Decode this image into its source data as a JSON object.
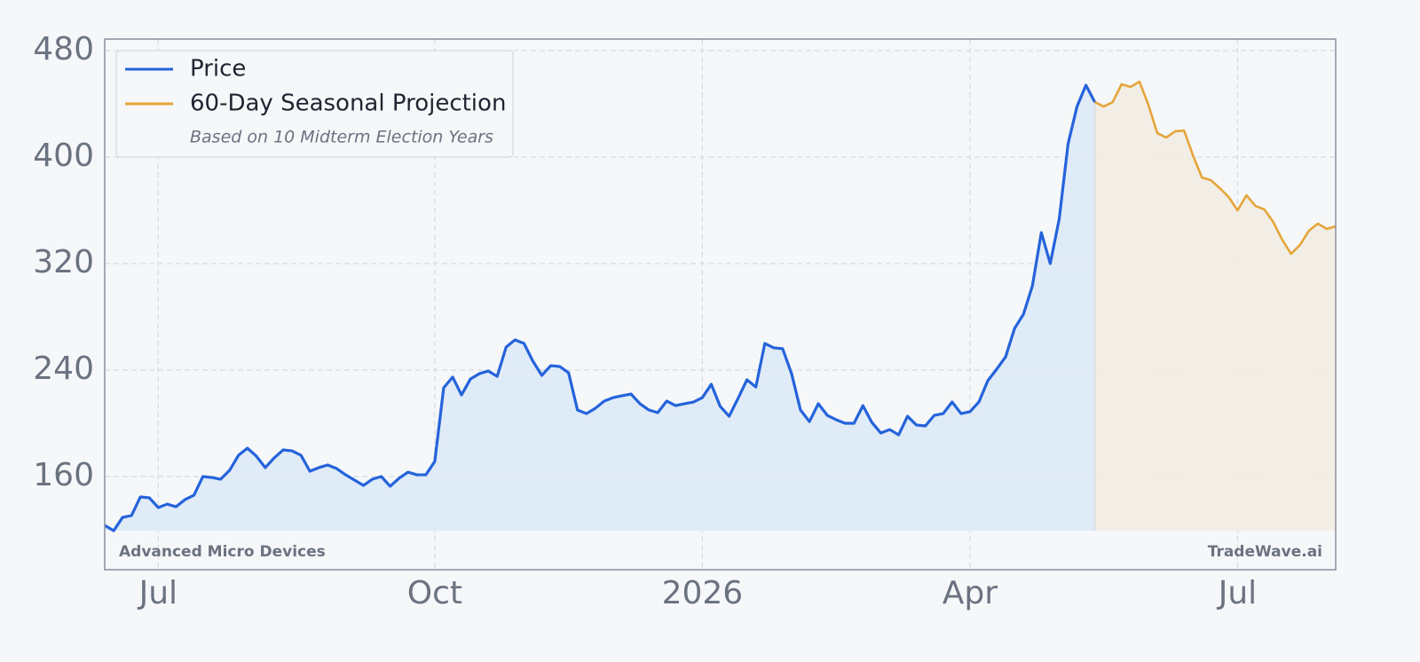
{
  "chart_data": {
    "type": "line",
    "company_note": "Advanced Micro Devices",
    "source_note": "TradeWave.ai",
    "legend_note": "Based on 10 Midterm Election Years",
    "legend_position": "upper left",
    "grid": true,
    "ylim": [
      90,
      488.7
    ],
    "yticks": [
      160,
      240,
      320,
      400,
      480
    ],
    "categories": [
      null,
      null,
      null,
      null,
      null,
      null,
      "Jul",
      null,
      null,
      null,
      null,
      null,
      null,
      null,
      null,
      null,
      null,
      null,
      null,
      null,
      null,
      null,
      null,
      null,
      null,
      null,
      null,
      null,
      null,
      null,
      null,
      null,
      null,
      null,
      null,
      null,
      null,
      "Oct",
      null,
      null,
      null,
      null,
      null,
      null,
      null,
      null,
      null,
      null,
      null,
      null,
      null,
      null,
      null,
      null,
      null,
      null,
      null,
      null,
      null,
      null,
      null,
      null,
      null,
      null,
      null,
      null,
      null,
      "2026",
      null,
      null,
      null,
      null,
      null,
      null,
      null,
      null,
      null,
      null,
      null,
      null,
      null,
      null,
      null,
      null,
      null,
      null,
      null,
      null,
      null,
      null,
      null,
      null,
      null,
      null,
      null,
      null,
      null,
      "Apr",
      null,
      null,
      null,
      null,
      null,
      null,
      null,
      null,
      null,
      null,
      null,
      null,
      null,
      null,
      null,
      null,
      null,
      null,
      null,
      null,
      null,
      null,
      null,
      null,
      null,
      null,
      null,
      null,
      null,
      "Jul",
      null,
      null,
      null,
      null,
      null,
      null,
      null,
      null,
      null,
      null,
      null
    ],
    "series": [
      {
        "name": "Price",
        "color": "#2563db",
        "fill": "#dde9f6",
        "values": [
          123.3,
          119.3,
          129.3,
          130.7,
          144.7,
          144,
          136.7,
          139.3,
          137.3,
          142.7,
          146,
          160,
          159.3,
          158,
          164.7,
          176,
          181.3,
          175.3,
          166.7,
          174,
          180,
          179.3,
          176,
          164,
          166.7,
          168.7,
          166,
          161.3,
          157.3,
          153.3,
          158,
          160,
          152.7,
          158.7,
          163.3,
          161.3,
          161.3,
          171.3,
          226.7,
          234.7,
          221.3,
          233.3,
          237.3,
          239.3,
          235.3,
          257.3,
          262.7,
          260,
          246.7,
          236,
          243.3,
          242.7,
          238,
          210,
          207.3,
          211.3,
          216.7,
          219.3,
          220.7,
          222,
          214.7,
          210,
          208,
          216.7,
          213.3,
          214.7,
          216,
          219.3,
          229.3,
          212.7,
          205.3,
          218.7,
          232.7,
          227.3,
          260,
          256.7,
          256,
          237.3,
          210,
          201.3,
          214.7,
          206,
          202.7,
          200,
          200,
          213.3,
          200.7,
          192.7,
          195.3,
          191.3,
          205.3,
          198.7,
          198,
          206,
          207.3,
          216,
          207.3,
          208.7,
          216,
          232,
          240.7,
          250,
          271.3,
          282,
          303.3,
          343.3,
          320,
          353.3,
          410,
          438,
          454,
          441.3,
          null,
          null,
          null,
          null,
          null,
          null,
          null,
          null,
          null,
          null,
          null,
          null,
          null,
          null,
          null,
          null,
          null,
          null,
          null,
          null,
          null,
          null,
          null,
          null,
          null,
          null,
          null
        ]
      },
      {
        "name": "60-Day Seasonal Projection",
        "color": "#e5a53a",
        "fill": "#f2ece3",
        "values": [
          null,
          null,
          null,
          null,
          null,
          null,
          null,
          null,
          null,
          null,
          null,
          null,
          null,
          null,
          null,
          null,
          null,
          null,
          null,
          null,
          null,
          null,
          null,
          null,
          null,
          null,
          null,
          null,
          null,
          null,
          null,
          null,
          null,
          null,
          null,
          null,
          null,
          null,
          null,
          null,
          null,
          null,
          null,
          null,
          null,
          null,
          null,
          null,
          null,
          null,
          null,
          null,
          null,
          null,
          null,
          null,
          null,
          null,
          null,
          null,
          null,
          null,
          null,
          null,
          null,
          null,
          null,
          null,
          null,
          null,
          null,
          null,
          null,
          null,
          null,
          null,
          null,
          null,
          null,
          null,
          null,
          null,
          null,
          null,
          null,
          null,
          null,
          null,
          null,
          null,
          null,
          null,
          null,
          null,
          null,
          null,
          null,
          null,
          null,
          null,
          null,
          null,
          null,
          null,
          null,
          null,
          null,
          null,
          null,
          null,
          null,
          441.3,
          438,
          441.3,
          454.7,
          452.7,
          456.7,
          439.3,
          418,
          414.7,
          419.3,
          420,
          401.3,
          384.7,
          382.7,
          376.7,
          370,
          360,
          371.3,
          363.3,
          360.7,
          351.3,
          338,
          327.3,
          334,
          344.7,
          350,
          346,
          348
        ]
      }
    ]
  }
}
